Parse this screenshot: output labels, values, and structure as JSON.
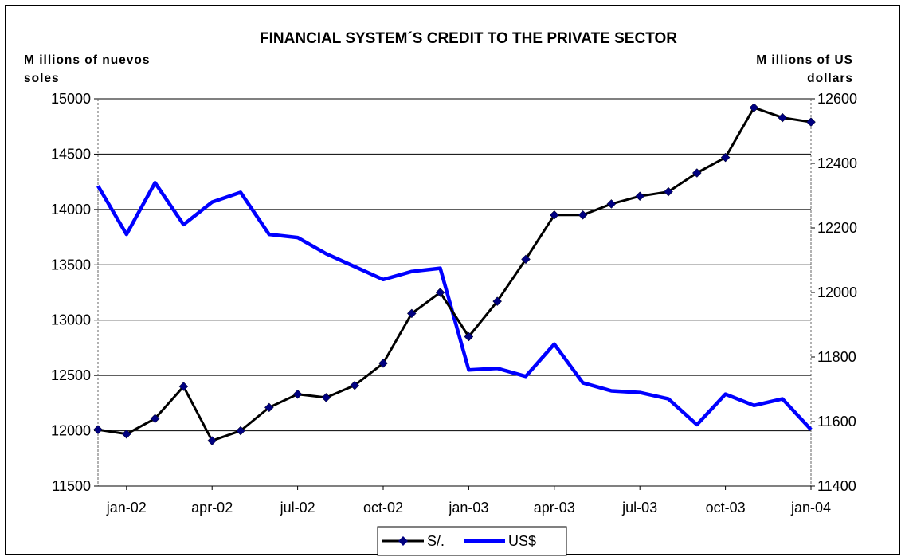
{
  "chart_data": {
    "type": "line",
    "title": "FINANCIAL SYSTEM´S CREDIT TO THE PRIVATE SECTOR",
    "ylabel_left_line1": "M illions of nuevos",
    "ylabel_left_line2": "soles",
    "ylabel_right_line1": "M illions of US",
    "ylabel_right_line2": "dollars",
    "x_tick_labels": [
      "jan-02",
      "apr-02",
      "jul-02",
      "oct-02",
      "jan-03",
      "apr-03",
      "jul-03",
      "oct-03",
      "jan-04"
    ],
    "y_left_range": [
      11500,
      15000
    ],
    "y_left_ticks": [
      "11500",
      "12000",
      "12500",
      "13000",
      "13500",
      "14000",
      "14500",
      "15000"
    ],
    "y_right_range": [
      11400,
      12600
    ],
    "y_right_ticks": [
      "11400",
      "11600",
      "11800",
      "12000",
      "12200",
      "12400",
      "12600"
    ],
    "grid": "horizontal",
    "legend_position": "bottom",
    "series": [
      {
        "name": "S/.",
        "axis": "left",
        "color": "#000000",
        "marker": "diamond",
        "marker_color": "#000080",
        "values": [
          12010,
          11970,
          12110,
          12400,
          11910,
          12000,
          12210,
          12330,
          12300,
          12410,
          12610,
          13060,
          13250,
          12850,
          13170,
          13550,
          13950,
          13950,
          14050,
          14120,
          14160,
          14330,
          14470,
          14920,
          14830,
          14790
        ]
      },
      {
        "name": "US$",
        "axis": "right",
        "color": "#0000ff",
        "values": [
          12330,
          12180,
          12340,
          12210,
          12280,
          12310,
          12180,
          12170,
          12120,
          12080,
          12040,
          12065,
          12075,
          11760,
          11765,
          11740,
          11840,
          11720,
          11695,
          11690,
          11670,
          11590,
          11685,
          11650,
          11670,
          11575
        ]
      }
    ]
  }
}
